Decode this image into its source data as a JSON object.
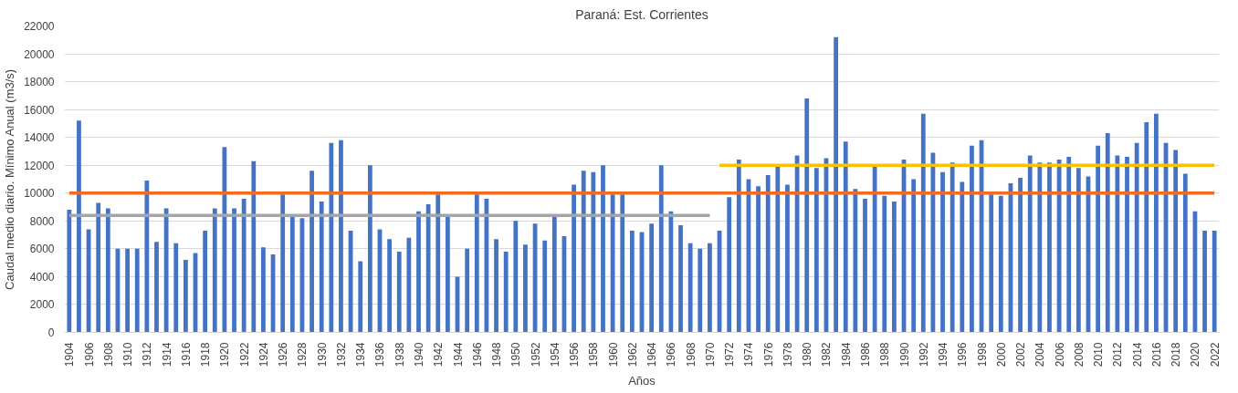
{
  "chart_data": {
    "type": "bar",
    "title": "Paraná: Est. Corrientes",
    "xlabel": "Años",
    "ylabel": "Caudal medio diario. Mínimo Anual (m3/s)",
    "x": [
      1904,
      1905,
      1906,
      1907,
      1908,
      1909,
      1910,
      1911,
      1912,
      1913,
      1914,
      1915,
      1916,
      1917,
      1918,
      1919,
      1920,
      1921,
      1922,
      1923,
      1924,
      1925,
      1926,
      1927,
      1928,
      1929,
      1930,
      1931,
      1932,
      1933,
      1934,
      1935,
      1936,
      1937,
      1938,
      1939,
      1940,
      1941,
      1942,
      1943,
      1944,
      1945,
      1946,
      1947,
      1948,
      1949,
      1950,
      1951,
      1952,
      1953,
      1954,
      1955,
      1956,
      1957,
      1958,
      1959,
      1960,
      1961,
      1962,
      1963,
      1964,
      1965,
      1966,
      1967,
      1968,
      1969,
      1970,
      1971,
      1972,
      1973,
      1974,
      1975,
      1976,
      1977,
      1978,
      1979,
      1980,
      1981,
      1982,
      1983,
      1984,
      1985,
      1986,
      1987,
      1988,
      1989,
      1990,
      1991,
      1992,
      1993,
      1994,
      1995,
      1996,
      1997,
      1998,
      1999,
      2000,
      2001,
      2002,
      2003,
      2004,
      2005,
      2006,
      2007,
      2008,
      2009,
      2010,
      2011,
      2012,
      2013,
      2014,
      2015,
      2016,
      2017,
      2018,
      2019,
      2020,
      2021,
      2022
    ],
    "series": [
      {
        "color": "#4472c4",
        "values": [
          8800,
          15200,
          7400,
          9300,
          8900,
          6000,
          6000,
          6000,
          10900,
          6500,
          8900,
          6400,
          5200,
          5700,
          7300,
          8900,
          13300,
          8900,
          9600,
          12300,
          6100,
          5600,
          9900,
          8300,
          8200,
          11600,
          9400,
          13600,
          13800,
          7300,
          5100,
          12000,
          7400,
          6700,
          5800,
          6800,
          8700,
          9200,
          9900,
          8300,
          4000,
          6000,
          9900,
          9600,
          6700,
          5800,
          8000,
          6300,
          7800,
          6600,
          8300,
          6900,
          10600,
          11600,
          11500,
          12000,
          9900,
          9900,
          7300,
          7200,
          7800,
          12000,
          8700,
          7700,
          6400,
          6000,
          6400,
          7300,
          9700,
          12400,
          11000,
          10500,
          11300,
          11900,
          10600,
          12700,
          16800,
          11800,
          12500,
          21200,
          13700,
          10300,
          9600,
          11900,
          9800,
          9400,
          12400,
          11000,
          15700,
          12900,
          11500,
          12200,
          10800,
          13400,
          13800,
          9900,
          9800,
          10700,
          11100,
          12700,
          12200,
          12200,
          12400,
          12600,
          11800,
          11200,
          13400,
          14300,
          12700,
          12600,
          13600,
          15100,
          15700,
          13600,
          13100,
          11400,
          8700,
          7300,
          7300
        ]
      },
      {
        "type": "line",
        "color": "#a5a5a5",
        "x": [
          1904,
          1970
        ],
        "values": [
          8400,
          8400
        ]
      },
      {
        "type": "line",
        "color": "#ffc000",
        "x": [
          1971,
          2022
        ],
        "values": [
          12000,
          12000
        ]
      },
      {
        "type": "line",
        "color": "#f26b21",
        "x": [
          1904,
          2022
        ],
        "values": [
          10000,
          10000
        ]
      }
    ],
    "xlim": [
      1903.5,
      2022.5
    ],
    "xticks": [
      1904,
      1906,
      1908,
      1910,
      1912,
      1914,
      1916,
      1918,
      1920,
      1922,
      1924,
      1926,
      1928,
      1930,
      1932,
      1934,
      1936,
      1938,
      1940,
      1942,
      1944,
      1946,
      1948,
      1950,
      1952,
      1954,
      1956,
      1958,
      1960,
      1962,
      1964,
      1966,
      1968,
      1970,
      1972,
      1974,
      1976,
      1978,
      1980,
      1982,
      1984,
      1986,
      1988,
      1990,
      1992,
      1994,
      1996,
      1998,
      2000,
      2002,
      2004,
      2006,
      2008,
      2010,
      2012,
      2014,
      2016,
      2018,
      2020,
      2022
    ],
    "ylim": [
      0,
      22000
    ],
    "yticks": [
      0,
      2000,
      4000,
      6000,
      8000,
      10000,
      12000,
      14000,
      16000,
      18000,
      20000,
      22000
    ],
    "grid": "y"
  }
}
